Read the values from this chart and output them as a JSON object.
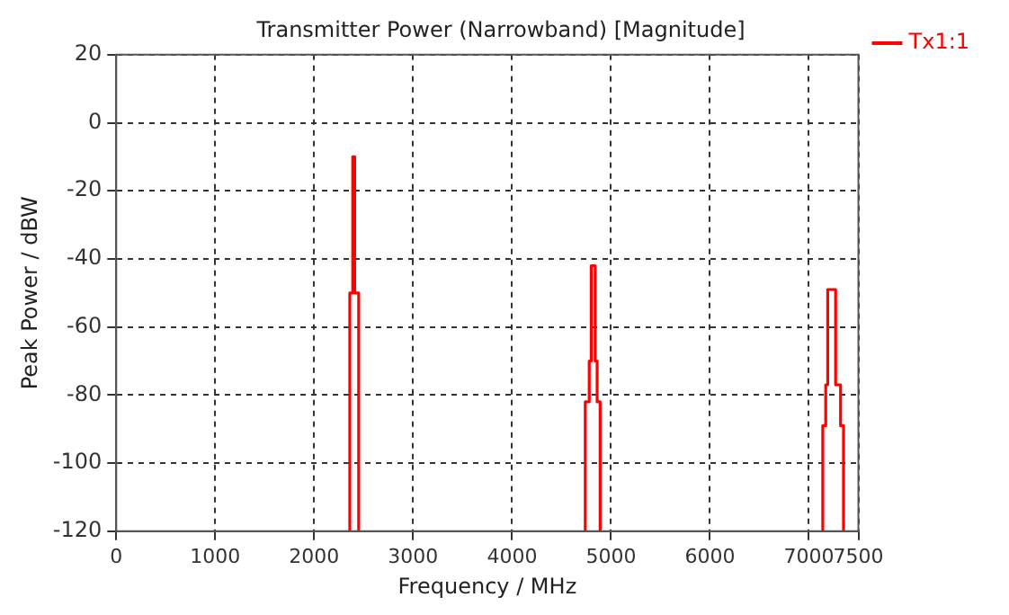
{
  "chart_data": {
    "type": "line",
    "title": "Transmitter Power (Narrowband) [Magnitude]",
    "xlabel": "Frequency / MHz",
    "ylabel": "Peak Power / dBW",
    "xlim": [
      0,
      7500
    ],
    "xticks": [
      0,
      1000,
      2000,
      3000,
      4000,
      5000,
      6000,
      7000,
      7500
    ],
    "ylim": [
      -120,
      20
    ],
    "yticks": [
      -120,
      -100,
      -80,
      -60,
      -40,
      -20,
      0,
      20
    ],
    "grid": true,
    "legend": "top right",
    "marker": "none",
    "line_style": "solid",
    "series": [
      {
        "name": "Tx1:1",
        "color": "#ff0000",
        "x": [
          2360,
          2360,
          2390,
          2390,
          2410,
          2410,
          2450,
          2450,
          null,
          4740,
          4740,
          4780,
          4780,
          4800,
          4800,
          4840,
          4840,
          4860,
          4860,
          4890,
          4890,
          null,
          7140,
          7140,
          7170,
          7170,
          7190,
          7190,
          7270,
          7270,
          7320,
          7320,
          7350,
          7350
        ],
        "values": [
          -120,
          -50,
          -50,
          -10,
          -10,
          -50,
          -50,
          -120,
          null,
          -120,
          -82,
          -82,
          -70,
          -70,
          -42,
          -42,
          -70,
          -70,
          -82,
          -82,
          -120,
          null,
          -120,
          -89,
          -89,
          -77,
          -77,
          -49,
          -49,
          -77,
          -77,
          -89,
          -89,
          -120
        ]
      }
    ]
  }
}
